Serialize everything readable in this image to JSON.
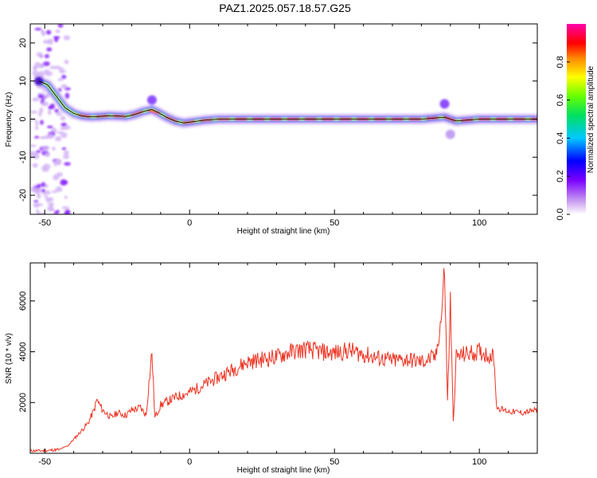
{
  "title": "PAZ1.2025.057.18.57.G25",
  "colors": {
    "snr_line": "#ee3322",
    "trace": "#000000"
  },
  "chart_data": [
    {
      "type": "heatmap",
      "xlabel": "Height of straight line (km)",
      "ylabel": "Frequency (Hz)",
      "xlim": [
        -55,
        120
      ],
      "ylim": [
        -25,
        25
      ],
      "xticks": [
        -50,
        0,
        50,
        100
      ],
      "yticks": [
        -20,
        -10,
        0,
        10,
        20
      ],
      "grid": false,
      "colorbar": {
        "label": "Normalized spectral amplitude",
        "range": [
          0,
          1
        ],
        "ticks": [
          "0.0",
          "0.2",
          "0.4",
          "0.6",
          "0.8"
        ],
        "colormap": "rainbow (violet-blue-cyan-green-yellow-red-magenta)"
      },
      "ridge": {
        "description": "peak frequency versus height",
        "x": [
          -52,
          -49,
          -46,
          -43,
          -40,
          -37,
          -34,
          -31,
          -28,
          -25,
          -22,
          -19,
          -16,
          -13,
          -11,
          -8,
          -5,
          -2,
          0,
          5,
          10,
          20,
          40,
          60,
          80,
          88,
          92,
          100,
          120
        ],
        "y": [
          10,
          9,
          6,
          3,
          1.5,
          0.8,
          0.6,
          0.7,
          0.9,
          0.8,
          0.7,
          1.2,
          2.0,
          2.5,
          1.8,
          0.5,
          -0.5,
          -1,
          -0.8,
          -0.3,
          0,
          0,
          0,
          0,
          0,
          0.5,
          -0.5,
          0,
          0
        ]
      }
    },
    {
      "type": "line",
      "xlabel": "Height of straight line (km)",
      "ylabel": "SNR (10 * v/v)",
      "xlim": [
        -55,
        120
      ],
      "ylim": [
        0,
        7500
      ],
      "xticks": [
        -50,
        0,
        50,
        100
      ],
      "yticks": [
        2000,
        4000,
        6000
      ],
      "grid": false,
      "series": [
        {
          "x": [
            -55,
            -50,
            -45,
            -42,
            -38,
            -35,
            -33,
            -32,
            -30,
            -27,
            -25,
            -22,
            -20,
            -17,
            -15,
            -14,
            -13,
            -12,
            -10,
            -5,
            0,
            5,
            10,
            15,
            20,
            25,
            30,
            35,
            40,
            45,
            50,
            55,
            60,
            65,
            70,
            75,
            80,
            85,
            87,
            88,
            89,
            90,
            91,
            92,
            95,
            100,
            105,
            106,
            110,
            115,
            120
          ],
          "values": [
            100,
            100,
            150,
            300,
            800,
            1200,
            1700,
            2100,
            1700,
            1400,
            1600,
            1500,
            1700,
            1800,
            1500,
            2800,
            4000,
            1400,
            1900,
            2200,
            2400,
            2700,
            3000,
            3300,
            3600,
            3700,
            3800,
            4000,
            4100,
            4000,
            3950,
            4050,
            3900,
            3750,
            3650,
            3700,
            3600,
            3800,
            5500,
            7300,
            2000,
            6000,
            1200,
            3800,
            3900,
            4000,
            3800,
            1800,
            1650,
            1600,
            1700
          ]
        }
      ]
    }
  ]
}
